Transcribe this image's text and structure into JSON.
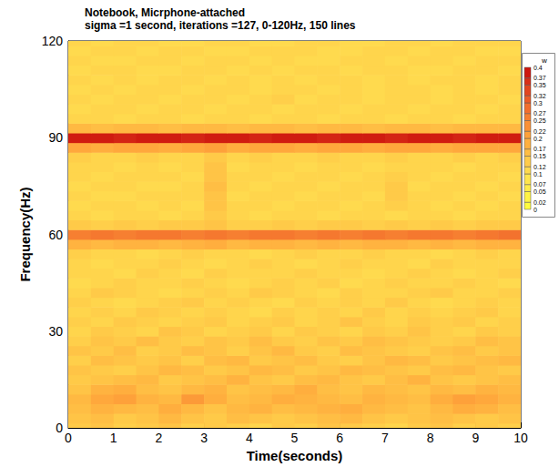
{
  "chart_data": {
    "type": "heatmap",
    "title": "Notebook, Micrphone-attached",
    "subtitle": "sigma =1 second, iterations =127, 0-120Hz, 150 lines",
    "x_label": "Time(seconds)",
    "y_label": "Frequency(Hz)",
    "xlim": [
      0,
      10
    ],
    "xticks": [
      0,
      1,
      2,
      3,
      4,
      5,
      6,
      7,
      8,
      9,
      10
    ],
    "ylim": [
      0,
      120
    ],
    "yticks": [
      0,
      30,
      60,
      90,
      120
    ],
    "x": [
      0.25,
      0.75,
      1.25,
      1.75,
      2.25,
      2.75,
      3.25,
      3.75,
      4.25,
      4.75,
      5.25,
      5.75,
      6.25,
      6.75,
      7.25,
      7.75,
      8.25,
      8.75,
      9.25,
      9.75
    ],
    "y": [
      0,
      3,
      6,
      9,
      12,
      15,
      18,
      21,
      24,
      27,
      30,
      33,
      36,
      39,
      42,
      45,
      48,
      51,
      54,
      57,
      60,
      63,
      66,
      69,
      72,
      75,
      78,
      81,
      84,
      87,
      90,
      93,
      96,
      99,
      102,
      105,
      108,
      111,
      114,
      117,
      120
    ],
    "values": [
      [
        0.14,
        0.15,
        0.13,
        0.14,
        0.15,
        0.13,
        0.14,
        0.13,
        0.12,
        0.14,
        0.13,
        0.15,
        0.14,
        0.13,
        0.12,
        0.14,
        0.15,
        0.13,
        0.14,
        0.13
      ],
      [
        0.15,
        0.16,
        0.14,
        0.15,
        0.17,
        0.15,
        0.14,
        0.16,
        0.15,
        0.14,
        0.15,
        0.16,
        0.17,
        0.15,
        0.14,
        0.15,
        0.16,
        0.15,
        0.14,
        0.15
      ],
      [
        0.16,
        0.18,
        0.17,
        0.16,
        0.19,
        0.17,
        0.15,
        0.17,
        0.18,
        0.16,
        0.17,
        0.18,
        0.19,
        0.17,
        0.16,
        0.15,
        0.17,
        0.19,
        0.18,
        0.16
      ],
      [
        0.17,
        0.2,
        0.21,
        0.18,
        0.17,
        0.22,
        0.19,
        0.16,
        0.17,
        0.19,
        0.18,
        0.17,
        0.16,
        0.18,
        0.17,
        0.16,
        0.19,
        0.21,
        0.2,
        0.18
      ],
      [
        0.15,
        0.18,
        0.19,
        0.16,
        0.15,
        0.17,
        0.18,
        0.15,
        0.16,
        0.17,
        0.19,
        0.16,
        0.15,
        0.17,
        0.16,
        0.15,
        0.17,
        0.16,
        0.18,
        0.17
      ],
      [
        0.14,
        0.15,
        0.16,
        0.17,
        0.14,
        0.15,
        0.16,
        0.18,
        0.15,
        0.14,
        0.16,
        0.17,
        0.15,
        0.14,
        0.16,
        0.18,
        0.15,
        0.14,
        0.15,
        0.16
      ],
      [
        0.15,
        0.14,
        0.13,
        0.15,
        0.17,
        0.16,
        0.14,
        0.15,
        0.17,
        0.16,
        0.14,
        0.15,
        0.17,
        0.16,
        0.15,
        0.14,
        0.16,
        0.17,
        0.15,
        0.14
      ],
      [
        0.13,
        0.16,
        0.15,
        0.14,
        0.15,
        0.13,
        0.16,
        0.17,
        0.14,
        0.15,
        0.16,
        0.14,
        0.13,
        0.15,
        0.17,
        0.16,
        0.14,
        0.15,
        0.16,
        0.17
      ],
      [
        0.15,
        0.14,
        0.16,
        0.13,
        0.14,
        0.16,
        0.15,
        0.13,
        0.15,
        0.17,
        0.14,
        0.13,
        0.16,
        0.15,
        0.14,
        0.13,
        0.15,
        0.16,
        0.14,
        0.15
      ],
      [
        0.13,
        0.15,
        0.14,
        0.16,
        0.14,
        0.13,
        0.15,
        0.14,
        0.16,
        0.14,
        0.13,
        0.15,
        0.14,
        0.16,
        0.15,
        0.14,
        0.13,
        0.14,
        0.16,
        0.15
      ],
      [
        0.12,
        0.14,
        0.13,
        0.12,
        0.15,
        0.14,
        0.12,
        0.13,
        0.14,
        0.12,
        0.14,
        0.13,
        0.12,
        0.14,
        0.13,
        0.15,
        0.13,
        0.12,
        0.14,
        0.13
      ],
      [
        0.13,
        0.12,
        0.14,
        0.13,
        0.12,
        0.13,
        0.14,
        0.12,
        0.13,
        0.14,
        0.12,
        0.13,
        0.15,
        0.13,
        0.12,
        0.14,
        0.13,
        0.14,
        0.12,
        0.13
      ],
      [
        0.12,
        0.13,
        0.12,
        0.14,
        0.13,
        0.12,
        0.13,
        0.12,
        0.11,
        0.13,
        0.12,
        0.13,
        0.12,
        0.14,
        0.12,
        0.13,
        0.12,
        0.13,
        0.14,
        0.12
      ],
      [
        0.13,
        0.12,
        0.11,
        0.12,
        0.13,
        0.14,
        0.12,
        0.13,
        0.12,
        0.11,
        0.13,
        0.12,
        0.13,
        0.12,
        0.14,
        0.12,
        0.11,
        0.12,
        0.13,
        0.12
      ],
      [
        0.12,
        0.14,
        0.13,
        0.12,
        0.11,
        0.12,
        0.13,
        0.12,
        0.14,
        0.13,
        0.12,
        0.11,
        0.13,
        0.12,
        0.12,
        0.13,
        0.14,
        0.12,
        0.12,
        0.13
      ],
      [
        0.11,
        0.12,
        0.13,
        0.12,
        0.12,
        0.13,
        0.12,
        0.11,
        0.12,
        0.13,
        0.12,
        0.13,
        0.11,
        0.12,
        0.13,
        0.12,
        0.12,
        0.13,
        0.12,
        0.11
      ],
      [
        0.12,
        0.12,
        0.11,
        0.13,
        0.12,
        0.11,
        0.13,
        0.12,
        0.12,
        0.12,
        0.13,
        0.12,
        0.12,
        0.11,
        0.12,
        0.13,
        0.12,
        0.11,
        0.12,
        0.13
      ],
      [
        0.12,
        0.11,
        0.12,
        0.12,
        0.13,
        0.12,
        0.11,
        0.12,
        0.13,
        0.12,
        0.11,
        0.12,
        0.13,
        0.12,
        0.12,
        0.11,
        0.13,
        0.12,
        0.12,
        0.12
      ],
      [
        0.13,
        0.12,
        0.12,
        0.11,
        0.12,
        0.13,
        0.12,
        0.12,
        0.11,
        0.12,
        0.13,
        0.12,
        0.12,
        0.13,
        0.12,
        0.12,
        0.11,
        0.12,
        0.13,
        0.12
      ],
      [
        0.18,
        0.17,
        0.18,
        0.18,
        0.17,
        0.18,
        0.19,
        0.17,
        0.18,
        0.18,
        0.17,
        0.18,
        0.17,
        0.18,
        0.18,
        0.17,
        0.18,
        0.17,
        0.18,
        0.18
      ],
      [
        0.26,
        0.27,
        0.26,
        0.27,
        0.27,
        0.26,
        0.27,
        0.26,
        0.27,
        0.27,
        0.26,
        0.27,
        0.26,
        0.27,
        0.26,
        0.27,
        0.27,
        0.26,
        0.27,
        0.28
      ],
      [
        0.14,
        0.13,
        0.14,
        0.13,
        0.14,
        0.14,
        0.15,
        0.13,
        0.13,
        0.14,
        0.13,
        0.14,
        0.14,
        0.13,
        0.14,
        0.13,
        0.14,
        0.13,
        0.14,
        0.14
      ],
      [
        0.12,
        0.11,
        0.12,
        0.12,
        0.11,
        0.12,
        0.14,
        0.12,
        0.11,
        0.12,
        0.12,
        0.11,
        0.12,
        0.12,
        0.11,
        0.12,
        0.12,
        0.11,
        0.12,
        0.12
      ],
      [
        0.11,
        0.12,
        0.12,
        0.11,
        0.12,
        0.11,
        0.15,
        0.12,
        0.12,
        0.11,
        0.12,
        0.12,
        0.11,
        0.12,
        0.13,
        0.12,
        0.11,
        0.12,
        0.11,
        0.12
      ],
      [
        0.12,
        0.11,
        0.11,
        0.12,
        0.12,
        0.12,
        0.15,
        0.11,
        0.12,
        0.12,
        0.11,
        0.12,
        0.12,
        0.11,
        0.14,
        0.12,
        0.12,
        0.11,
        0.12,
        0.11
      ],
      [
        0.11,
        0.12,
        0.12,
        0.11,
        0.11,
        0.12,
        0.16,
        0.12,
        0.11,
        0.12,
        0.12,
        0.11,
        0.12,
        0.12,
        0.14,
        0.11,
        0.12,
        0.12,
        0.11,
        0.12
      ],
      [
        0.12,
        0.11,
        0.12,
        0.12,
        0.12,
        0.11,
        0.15,
        0.12,
        0.12,
        0.11,
        0.12,
        0.12,
        0.11,
        0.12,
        0.13,
        0.12,
        0.11,
        0.12,
        0.12,
        0.11
      ],
      [
        0.12,
        0.12,
        0.11,
        0.12,
        0.11,
        0.12,
        0.15,
        0.11,
        0.12,
        0.12,
        0.11,
        0.12,
        0.12,
        0.11,
        0.12,
        0.12,
        0.12,
        0.11,
        0.12,
        0.12
      ],
      [
        0.13,
        0.12,
        0.12,
        0.13,
        0.12,
        0.12,
        0.14,
        0.12,
        0.13,
        0.12,
        0.12,
        0.13,
        0.12,
        0.12,
        0.13,
        0.12,
        0.12,
        0.13,
        0.12,
        0.13
      ],
      [
        0.2,
        0.19,
        0.2,
        0.2,
        0.19,
        0.2,
        0.21,
        0.19,
        0.2,
        0.2,
        0.19,
        0.2,
        0.2,
        0.19,
        0.2,
        0.2,
        0.19,
        0.2,
        0.2,
        0.2
      ],
      [
        0.38,
        0.38,
        0.37,
        0.38,
        0.38,
        0.37,
        0.38,
        0.38,
        0.37,
        0.38,
        0.38,
        0.37,
        0.38,
        0.38,
        0.37,
        0.38,
        0.38,
        0.37,
        0.38,
        0.38
      ],
      [
        0.17,
        0.16,
        0.17,
        0.17,
        0.16,
        0.17,
        0.17,
        0.16,
        0.17,
        0.17,
        0.16,
        0.17,
        0.17,
        0.16,
        0.17,
        0.17,
        0.16,
        0.17,
        0.17,
        0.17
      ],
      [
        0.12,
        0.12,
        0.11,
        0.12,
        0.12,
        0.11,
        0.12,
        0.12,
        0.11,
        0.12,
        0.12,
        0.11,
        0.12,
        0.12,
        0.11,
        0.12,
        0.12,
        0.11,
        0.12,
        0.12
      ],
      [
        0.11,
        0.12,
        0.12,
        0.11,
        0.12,
        0.12,
        0.11,
        0.12,
        0.12,
        0.11,
        0.12,
        0.12,
        0.11,
        0.12,
        0.12,
        0.11,
        0.12,
        0.12,
        0.11,
        0.12
      ],
      [
        0.12,
        0.11,
        0.12,
        0.12,
        0.11,
        0.12,
        0.12,
        0.11,
        0.12,
        0.13,
        0.11,
        0.12,
        0.12,
        0.11,
        0.12,
        0.12,
        0.11,
        0.12,
        0.12,
        0.11
      ],
      [
        0.11,
        0.12,
        0.11,
        0.12,
        0.12,
        0.11,
        0.12,
        0.12,
        0.11,
        0.12,
        0.12,
        0.11,
        0.12,
        0.11,
        0.12,
        0.12,
        0.11,
        0.12,
        0.11,
        0.12
      ],
      [
        0.12,
        0.11,
        0.12,
        0.11,
        0.12,
        0.12,
        0.11,
        0.12,
        0.11,
        0.12,
        0.11,
        0.12,
        0.12,
        0.11,
        0.12,
        0.11,
        0.12,
        0.12,
        0.11,
        0.12
      ],
      [
        0.11,
        0.12,
        0.12,
        0.11,
        0.11,
        0.12,
        0.12,
        0.11,
        0.12,
        0.11,
        0.12,
        0.12,
        0.11,
        0.12,
        0.12,
        0.11,
        0.11,
        0.12,
        0.12,
        0.11
      ],
      [
        0.12,
        0.11,
        0.11,
        0.12,
        0.12,
        0.11,
        0.12,
        0.12,
        0.11,
        0.12,
        0.11,
        0.11,
        0.12,
        0.12,
        0.11,
        0.12,
        0.12,
        0.11,
        0.12,
        0.12
      ],
      [
        0.11,
        0.12,
        0.12,
        0.11,
        0.12,
        0.12,
        0.11,
        0.11,
        0.12,
        0.12,
        0.12,
        0.11,
        0.11,
        0.12,
        0.12,
        0.11,
        0.12,
        0.12,
        0.11,
        0.11
      ],
      [
        0.12,
        0.11,
        0.12,
        0.12,
        0.11,
        0.11,
        0.12,
        0.12,
        0.11,
        0.11,
        0.12,
        0.12,
        0.11,
        0.11,
        0.12,
        0.12,
        0.11,
        0.12,
        0.12,
        0.12
      ]
    ],
    "colorbar": {
      "title": "w",
      "range": [
        0,
        0.4
      ],
      "ticks": [
        0,
        0.02,
        0.05,
        0.07,
        0.1,
        0.12,
        0.15,
        0.17,
        0.2,
        0.22,
        0.25,
        0.27,
        0.3,
        0.32,
        0.35,
        0.37,
        0.4
      ]
    }
  }
}
